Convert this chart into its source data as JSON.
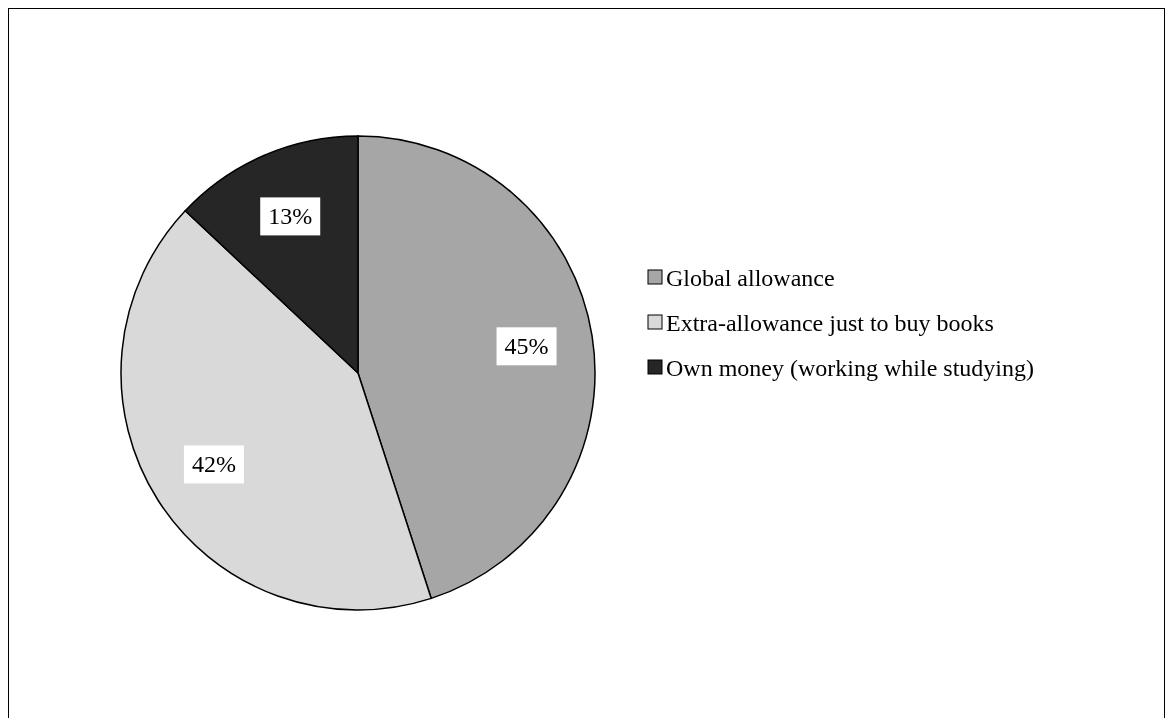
{
  "chart_data": {
    "type": "pie",
    "categories": [
      "Global allowance",
      "Extra-allowance just to buy books",
      "Own money (working while studying)"
    ],
    "values": [
      45,
      42,
      13
    ],
    "value_labels": [
      "45%",
      "42%",
      "13%"
    ],
    "colors": [
      "#a6a6a6",
      "#d9d9d9",
      "#262626"
    ],
    "legend": "right"
  }
}
